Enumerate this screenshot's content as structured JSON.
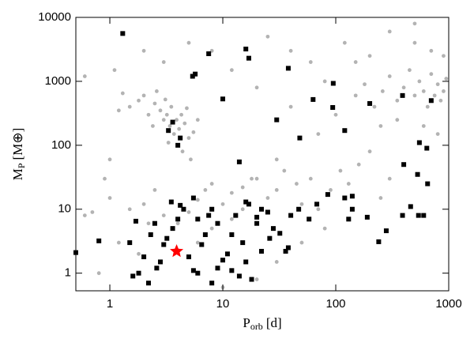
{
  "chart_data": {
    "type": "scatter",
    "xlabel": {
      "main": "P",
      "sub": "orb",
      "unit": "[d]"
    },
    "ylabel": {
      "main": "M",
      "sub": "P",
      "unit": "[M⊕]"
    },
    "xscale": "log",
    "yscale": "log",
    "xlim": [
      0.5,
      1000
    ],
    "ylim": [
      0.53,
      10000
    ],
    "xticks": [
      1,
      10,
      100,
      1000
    ],
    "yticks": [
      1,
      10,
      100,
      1000,
      10000
    ],
    "series": [
      {
        "color": "#b3b3b3",
        "marker": "circle",
        "x": [
          1.5,
          1.8,
          2,
          2.2,
          2.5,
          2.8,
          3,
          3.2,
          3.4,
          3.5,
          3.7,
          3.9,
          4.1,
          4.3,
          4.6,
          5,
          5.5,
          2.6,
          3.1,
          1.3,
          1.2,
          2.4,
          4.8,
          6,
          3.3,
          4.4,
          5.2,
          2,
          3,
          5,
          8,
          12,
          20,
          25,
          40,
          60,
          80,
          120,
          200,
          300,
          500,
          700,
          900,
          1.1,
          0.6,
          150,
          180,
          220,
          260,
          300,
          350,
          400,
          450,
          500,
          550,
          600,
          650,
          700,
          750,
          800,
          850,
          900,
          950,
          350,
          250,
          600,
          800,
          500,
          150,
          100,
          70,
          40,
          30,
          20,
          0.6,
          0.7,
          1,
          1.2,
          1.5,
          2,
          2.5,
          3,
          4,
          5,
          6,
          7,
          8,
          10,
          12,
          15,
          18,
          25,
          30,
          35,
          45,
          50,
          60,
          70,
          90,
          110,
          130,
          160,
          200,
          250,
          300,
          0.8,
          10,
          20,
          30,
          50,
          80,
          1.8,
          2.2,
          6,
          8,
          12,
          15,
          0.9,
          1
        ],
        "y": [
          400,
          500,
          600,
          300,
          450,
          350,
          250,
          300,
          200,
          400,
          150,
          250,
          180,
          300,
          220,
          130,
          160,
          700,
          520,
          650,
          350,
          200,
          380,
          250,
          110,
          80,
          60,
          3000,
          2000,
          4000,
          3000,
          1500,
          800,
          5000,
          3000,
          2000,
          1000,
          4000,
          2500,
          6000,
          8000,
          3000,
          2500,
          1500,
          1200,
          600,
          900,
          400,
          700,
          1200,
          500,
          800,
          1500,
          600,
          1000,
          700,
          400,
          1300,
          600,
          900,
          500,
          700,
          1100,
          250,
          200,
          200,
          150,
          4000,
          2000,
          300,
          150,
          400,
          60,
          30,
          8,
          9,
          15,
          3,
          10,
          12,
          20,
          8,
          6,
          9,
          14,
          20,
          25,
          12,
          18,
          22,
          30,
          15,
          20,
          40,
          25,
          12,
          30,
          10,
          20,
          40,
          25,
          50,
          80,
          15,
          30,
          1,
          0.6,
          0.8,
          1.5,
          3,
          5,
          2,
          6,
          3,
          5,
          7,
          10,
          30,
          60
        ]
      },
      {
        "color": "#000000",
        "marker": "square",
        "x": [
          0.5,
          0.8,
          1.3,
          3.6,
          3.3,
          4,
          4.2,
          7.5,
          5.4,
          5.7,
          10,
          14,
          16,
          17,
          30,
          38,
          63,
          95,
          48,
          94,
          120,
          200,
          390,
          400,
          550,
          530,
          640,
          700,
          650,
          540,
          460,
          390,
          600,
          190,
          240,
          280,
          140,
          140,
          130,
          120,
          85,
          68,
          58,
          47,
          40,
          38,
          36,
          32,
          28,
          25,
          22,
          20,
          17,
          16,
          13,
          15,
          12,
          11,
          10,
          9,
          8,
          7.5,
          7,
          6.5,
          6,
          5.5,
          5,
          4.5,
          4,
          3.6,
          3.2,
          2.8,
          2.5,
          2.3,
          2,
          1.8,
          1.6,
          1.5,
          1.7,
          2.2,
          2.6,
          3,
          3.5,
          4.2,
          5.5,
          6,
          8,
          9,
          12,
          14,
          16,
          18,
          22,
          26,
          20
        ],
        "y": [
          2.1,
          3.2,
          5600,
          230,
          170,
          100,
          130,
          2700,
          1200,
          1300,
          530,
          55,
          3200,
          2300,
          250,
          1600,
          520,
          930,
          130,
          390,
          170,
          450,
          600,
          50,
          110,
          35,
          90,
          500,
          25,
          8,
          11,
          8,
          8,
          7.5,
          3.1,
          4.6,
          16,
          10,
          7,
          15,
          17,
          12,
          7,
          10,
          8,
          2.5,
          2.2,
          4.2,
          5,
          9,
          10,
          6,
          12,
          13,
          8,
          3,
          4,
          2,
          1.6,
          6,
          10,
          8,
          4,
          2.8,
          7,
          15,
          1.8,
          10,
          7,
          5,
          3.5,
          1.5,
          6,
          4,
          1.8,
          1,
          0.9,
          3,
          6.5,
          0.7,
          1.2,
          2.8,
          13,
          11.5,
          1.1,
          1,
          0.7,
          1.2,
          1.1,
          0.9,
          1.5,
          0.8,
          2.2,
          3.5,
          7.5
        ]
      },
      {
        "color": "#ff0000",
        "marker": "star",
        "x": [
          3.9
        ],
        "y": [
          2.2
        ]
      }
    ]
  }
}
